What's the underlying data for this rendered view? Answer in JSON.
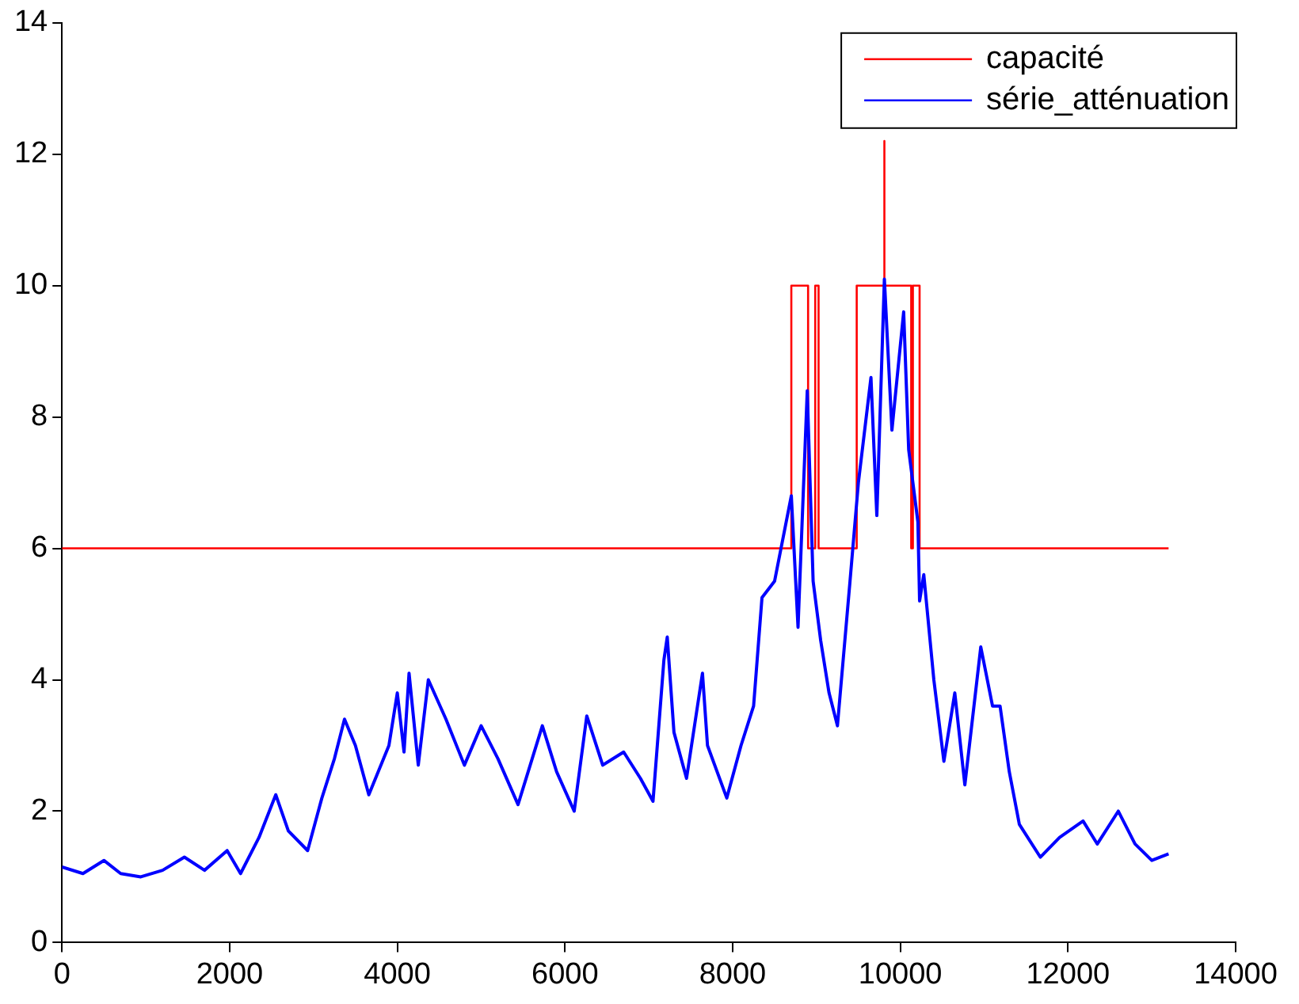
{
  "chart_data": {
    "type": "line",
    "xlim": [
      0,
      14000
    ],
    "ylim": [
      0,
      14
    ],
    "xticks": [
      0,
      2000,
      4000,
      6000,
      8000,
      10000,
      12000,
      14000
    ],
    "yticks": [
      0,
      2,
      4,
      6,
      8,
      10,
      12,
      14
    ],
    "grid": false,
    "legend": "top right",
    "marker": "none",
    "line_style": "solid",
    "series": [
      {
        "name": "capacité",
        "color": "#ff0000",
        "x": [
          0,
          8700,
          8700,
          8900,
          8900,
          8985,
          8985,
          9025,
          9025,
          9480,
          9480,
          9810,
          9810,
          9810,
          10130,
          10130,
          10150,
          10150,
          10230,
          10230,
          13200
        ],
        "values": [
          6,
          6,
          10,
          10,
          6,
          6,
          10,
          10,
          6,
          6,
          10,
          10,
          12.2,
          10,
          10,
          6,
          6,
          10,
          10,
          6,
          6
        ]
      },
      {
        "name": "série_atténuation",
        "color": "#0000ff",
        "x": [
          0,
          250,
          500,
          700,
          940,
          1200,
          1460,
          1700,
          1970,
          2130,
          2350,
          2550,
          2700,
          2930,
          3100,
          3250,
          3370,
          3500,
          3660,
          3900,
          4000,
          4080,
          4140,
          4250,
          4370,
          4580,
          4800,
          5000,
          5200,
          5440,
          5730,
          5900,
          6110,
          6260,
          6450,
          6700,
          6900,
          7050,
          7180,
          7220,
          7300,
          7450,
          7640,
          7700,
          7930,
          8100,
          8250,
          8350,
          8500,
          8700,
          8780,
          8890,
          8960,
          9050,
          9150,
          9250,
          9400,
          9500,
          9650,
          9720,
          9810,
          9900,
          10040,
          10100,
          10210,
          10230,
          10280,
          10400,
          10520,
          10650,
          10770,
          10960,
          11100,
          11190,
          11300,
          11420,
          11670,
          11900,
          12180,
          12350,
          12600,
          12800,
          13000,
          13200
        ],
        "values": [
          1.15,
          1.05,
          1.25,
          1.05,
          1.0,
          1.1,
          1.3,
          1.1,
          1.4,
          1.05,
          1.6,
          2.25,
          1.7,
          1.4,
          2.2,
          2.8,
          3.4,
          3.0,
          2.25,
          3.0,
          3.8,
          2.9,
          4.1,
          2.7,
          4.0,
          3.4,
          2.7,
          3.3,
          2.8,
          2.1,
          3.3,
          2.6,
          2.0,
          3.45,
          2.7,
          2.9,
          2.5,
          2.15,
          4.3,
          4.65,
          3.2,
          2.5,
          4.1,
          3.0,
          2.2,
          3.0,
          3.6,
          5.25,
          5.5,
          6.8,
          4.8,
          8.4,
          5.5,
          4.6,
          3.8,
          3.3,
          5.5,
          7.0,
          8.6,
          6.5,
          10.1,
          7.8,
          9.6,
          7.5,
          6.4,
          5.2,
          5.6,
          4.0,
          2.76,
          3.8,
          2.4,
          4.5,
          3.6,
          3.6,
          2.6,
          1.8,
          1.3,
          1.6,
          1.85,
          1.5,
          2.0,
          1.5,
          1.25,
          1.35
        ]
      }
    ]
  }
}
